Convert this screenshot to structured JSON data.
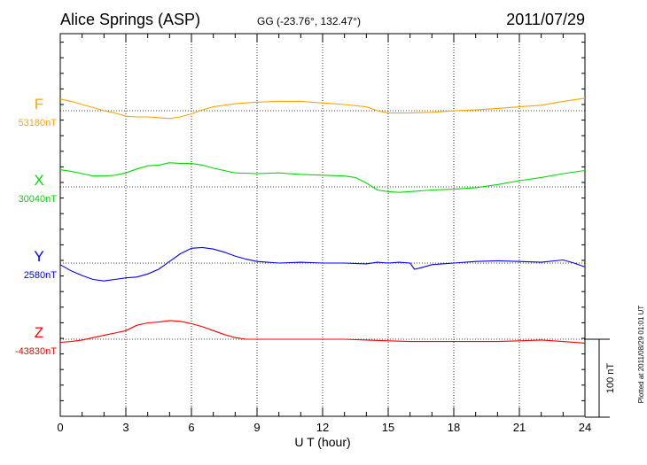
{
  "chart_data": {
    "type": "line",
    "title": "Alice Springs (ASP)",
    "subtitle": "GG (-23.76°, 132.47°)",
    "date": "2011/07/29",
    "xlabel": "U T (hour)",
    "x_ticks": [
      0,
      3,
      6,
      9,
      12,
      15,
      18,
      21,
      24
    ],
    "xlim": [
      0,
      24
    ],
    "grid": true,
    "scale_bar_label": "100 nT",
    "scale_nT": 100,
    "footer": "Plotted at 2011/08/29 01:01  UT",
    "series": [
      {
        "name": "F",
        "baseline_label": "53180nT",
        "baseline": 53180,
        "color": "#ffa500",
        "x": [
          0,
          0.5,
          1,
          1.5,
          2,
          2.5,
          3,
          3.5,
          4,
          4.5,
          5,
          5.5,
          6,
          6.5,
          7,
          8,
          9,
          10,
          11,
          12,
          13,
          14,
          14.5,
          15,
          16,
          17,
          18,
          19,
          20,
          21,
          22,
          23,
          24
        ],
        "values": [
          53195,
          53192,
          53188,
          53184,
          53180,
          53177,
          53173,
          53172,
          53172,
          53171,
          53170,
          53172,
          53176,
          53181,
          53185,
          53189,
          53191,
          53192,
          53192,
          53190,
          53188,
          53185,
          53180,
          53177,
          53177,
          53178,
          53180,
          53181,
          53183,
          53185,
          53187,
          53192,
          53196
        ]
      },
      {
        "name": "X",
        "baseline_label": "30040nT",
        "baseline": 30040,
        "color": "#00dd00",
        "x": [
          0,
          0.5,
          1,
          1.5,
          2,
          2.5,
          3,
          3.5,
          4,
          4.5,
          5,
          5.5,
          6,
          6.5,
          7,
          8,
          9,
          10,
          11,
          12,
          13,
          13.5,
          14,
          14.5,
          15,
          15.5,
          16,
          17,
          18,
          19,
          20,
          21,
          22,
          23,
          24
        ],
        "values": [
          30062,
          30060,
          30057,
          30054,
          30054,
          30055,
          30058,
          30063,
          30067,
          30068,
          30071,
          30070,
          30070,
          30068,
          30064,
          30058,
          30057,
          30058,
          30056,
          30055,
          30054,
          30052,
          30045,
          30036,
          30034,
          30033,
          30034,
          30036,
          30037,
          30039,
          30043,
          30048,
          30052,
          30057,
          30061
        ]
      },
      {
        "name": "Y",
        "baseline_label": "2580nT",
        "baseline": 2580,
        "color": "#0000ff",
        "x": [
          0,
          0.5,
          1,
          1.5,
          2,
          2.5,
          3,
          3.5,
          4,
          4.5,
          5,
          5.5,
          6,
          6.5,
          7,
          7.5,
          8,
          8.5,
          9,
          10,
          11,
          12,
          13,
          14,
          14.5,
          15,
          15.5,
          16,
          16.2,
          16.5,
          17,
          18,
          19,
          20,
          21,
          22,
          23,
          23.5,
          24
        ],
        "values": [
          2578,
          2570,
          2564,
          2559,
          2557,
          2559,
          2561,
          2562,
          2566,
          2572,
          2582,
          2592,
          2599,
          2600,
          2598,
          2594,
          2589,
          2585,
          2582,
          2580,
          2581,
          2580,
          2580,
          2579,
          2581,
          2580,
          2581,
          2580,
          2572,
          2574,
          2578,
          2580,
          2582,
          2583,
          2582,
          2581,
          2584,
          2580,
          2575
        ]
      },
      {
        "name": "Z",
        "baseline_label": "-43830nT",
        "baseline": -43830,
        "color": "#ff0000",
        "x": [
          0,
          0.5,
          1,
          1.5,
          2,
          2.5,
          3,
          3.5,
          4,
          4.5,
          5,
          5.5,
          6,
          6.5,
          7,
          7.5,
          8,
          8.5,
          9,
          10,
          11,
          12,
          13,
          14,
          15,
          16,
          17,
          18,
          19,
          20,
          21,
          22,
          23,
          24
        ],
        "values": [
          -43834,
          -43833,
          -43831,
          -43828,
          -43825,
          -43822,
          -43819,
          -43812,
          -43809,
          -43808,
          -43806,
          -43807,
          -43810,
          -43814,
          -43819,
          -43824,
          -43828,
          -43830,
          -43830,
          -43830,
          -43830,
          -43830,
          -43830,
          -43831,
          -43832,
          -43833,
          -43833,
          -43833,
          -43833,
          -43833,
          -43832,
          -43831,
          -43833,
          -43835
        ]
      }
    ]
  }
}
